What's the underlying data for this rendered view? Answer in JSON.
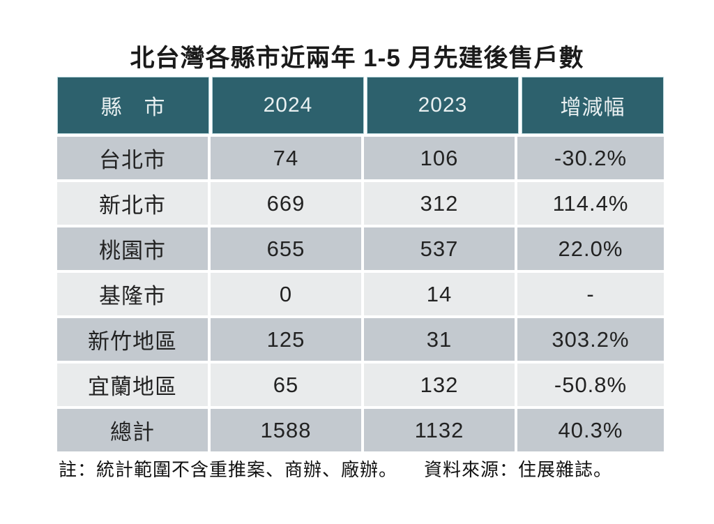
{
  "title": "北台灣各縣市近兩年 1-5 月先建後售戶數",
  "table": {
    "columns": [
      "縣　市",
      "2024",
      "2023",
      "增減幅"
    ],
    "rows": [
      {
        "region": "台北市",
        "y2024": "74",
        "y2023": "106",
        "change": "-30.2%"
      },
      {
        "region": "新北市",
        "y2024": "669",
        "y2023": "312",
        "change": "114.4%"
      },
      {
        "region": "桃園市",
        "y2024": "655",
        "y2023": "537",
        "change": "22.0%"
      },
      {
        "region": "基隆市",
        "y2024": "0",
        "y2023": "14",
        "change": "-"
      },
      {
        "region": "新竹地區",
        "y2024": "125",
        "y2023": "31",
        "change": "303.2%"
      },
      {
        "region": "宜蘭地區",
        "y2024": "65",
        "y2023": "132",
        "change": "-50.8%"
      },
      {
        "region": "總計",
        "y2024": "1588",
        "y2023": "1132",
        "change": "40.3%"
      }
    ]
  },
  "footer": {
    "note": "註：統計範圍不含重推案、商辦、廠辦。",
    "source": "資料來源：住展雜誌。"
  },
  "colors": {
    "header_bg": "#2d616d",
    "header_text": "#e9f0f1",
    "row_odd_bg": "#c3c9cf",
    "row_even_bg": "#e9ebec",
    "cell_text": "#222222",
    "title_text": "#1a1a1a"
  },
  "chart_data": {
    "type": "table",
    "title": "北台灣各縣市近兩年 1-5 月先建後售戶數",
    "columns": [
      "縣市",
      "2024",
      "2023",
      "增減幅"
    ],
    "rows": [
      [
        "台北市",
        74,
        106,
        "-30.2%"
      ],
      [
        "新北市",
        669,
        312,
        "114.4%"
      ],
      [
        "桃園市",
        655,
        537,
        "22.0%"
      ],
      [
        "基隆市",
        0,
        14,
        "-"
      ],
      [
        "新竹地區",
        125,
        31,
        "303.2%"
      ],
      [
        "宜蘭地區",
        65,
        132,
        "-50.8%"
      ],
      [
        "總計",
        1588,
        1132,
        "40.3%"
      ]
    ],
    "note": "註：統計範圍不含重推案、商辦、廠辦。",
    "source": "資料來源：住展雜誌。"
  }
}
